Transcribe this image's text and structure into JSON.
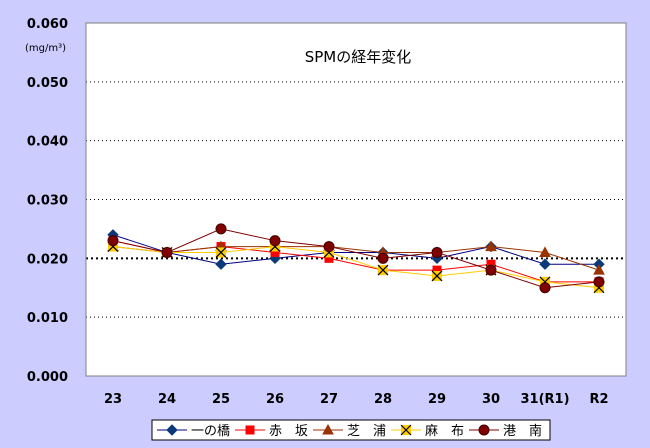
{
  "chart_data": {
    "type": "line",
    "title": "SPMの経年変化",
    "unit_label": "(mg/m³)",
    "categories": [
      "23",
      "24",
      "25",
      "26",
      "27",
      "28",
      "29",
      "30",
      "31(R1)",
      "R2"
    ],
    "y_ticks": [
      "0.000",
      "0.010",
      "0.020",
      "0.030",
      "0.040",
      "0.050",
      "0.060"
    ],
    "ylim": [
      0,
      0.06
    ],
    "y_grid": "dotted",
    "reference_line": 0.02,
    "legend_position": "bottom",
    "series": [
      {
        "name": "一の橋",
        "marker": "diamond",
        "color": "#000080",
        "marker_color": "#0a3a7a",
        "values": [
          0.024,
          0.021,
          0.019,
          0.02,
          0.021,
          0.021,
          0.02,
          0.022,
          0.019,
          0.019
        ]
      },
      {
        "name": "赤　坂",
        "marker": "square",
        "color": "#ff0000",
        "marker_color": "#ff0000",
        "values": [
          0.023,
          0.021,
          0.022,
          0.021,
          0.02,
          0.018,
          0.018,
          0.019,
          0.016,
          0.016
        ]
      },
      {
        "name": "芝　浦",
        "marker": "triangle",
        "color": "#993300",
        "marker_color": "#993300",
        "values": [
          0.022,
          0.021,
          0.022,
          0.022,
          0.022,
          0.021,
          0.021,
          0.022,
          0.021,
          0.018
        ]
      },
      {
        "name": "麻　布",
        "marker": "x",
        "color": "#ffcc00",
        "marker_color": "#000000",
        "values": [
          0.022,
          0.021,
          0.021,
          0.022,
          0.021,
          0.018,
          0.017,
          0.018,
          0.016,
          0.015
        ]
      },
      {
        "name": "港　南",
        "marker": "circle",
        "color": "#800000",
        "marker_color": "#800000",
        "values": [
          0.023,
          0.021,
          0.025,
          0.023,
          0.022,
          0.02,
          0.021,
          0.018,
          0.015,
          0.016
        ]
      }
    ]
  }
}
